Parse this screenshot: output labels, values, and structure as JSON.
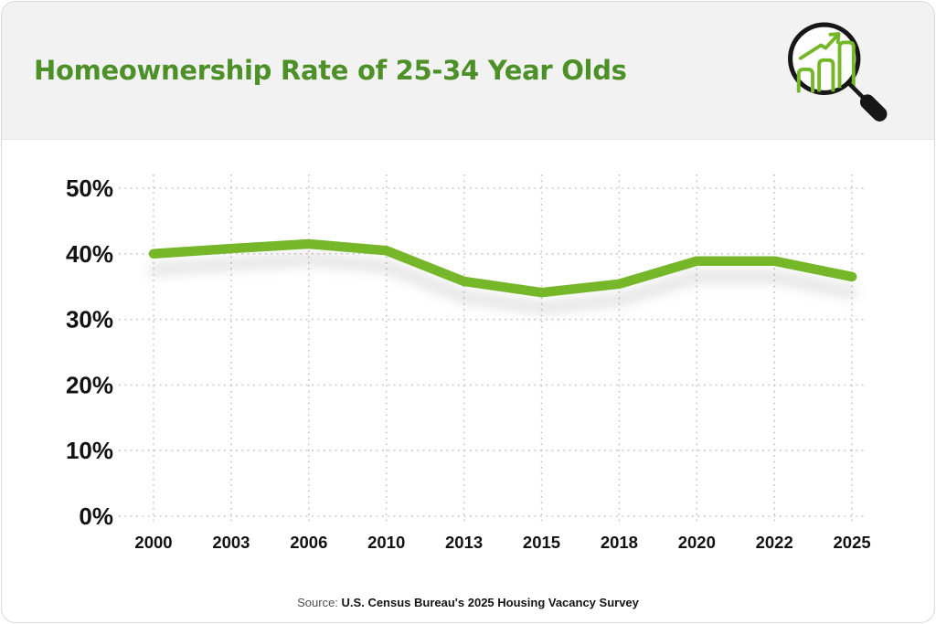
{
  "header": {
    "title": "Homeownership Rate of 25-34 Year Olds",
    "icon": "magnifier-bar-chart-icon"
  },
  "source": {
    "prefix": "Source:",
    "citation": "U.S. Census Bureau's 2025 Housing Vacancy Survey"
  },
  "colors": {
    "accent_green": "#76b72a",
    "title_green": "#4d9027",
    "header_bg": "#f2f2f2",
    "axis_text": "#121212",
    "gridline": "#c7c7c7",
    "icon_black": "#171717"
  },
  "chart_data": {
    "type": "line",
    "title": "Homeownership Rate of 25-34 Year Olds",
    "categories": [
      "2000",
      "2003",
      "2006",
      "2010",
      "2013",
      "2015",
      "2018",
      "2020",
      "2022",
      "2025"
    ],
    "series": [
      {
        "name": "Homeownership rate of 25-34 year olds (%)",
        "color": "#76b72a",
        "values": [
          40.0,
          40.8,
          41.5,
          40.5,
          35.8,
          34.1,
          35.4,
          38.9,
          38.9,
          36.5
        ]
      }
    ],
    "xlabel": "",
    "ylabel": "",
    "ylim": [
      0,
      50
    ],
    "yticks": [
      0,
      10,
      20,
      30,
      40,
      50
    ],
    "ytick_labels": [
      "0%",
      "10%",
      "20%",
      "30%",
      "40%",
      "50%"
    ],
    "grid": "dotted-both-axes",
    "legend": "none",
    "source": "U.S. Census Bureau's 2025 Housing Vacancy Survey"
  }
}
